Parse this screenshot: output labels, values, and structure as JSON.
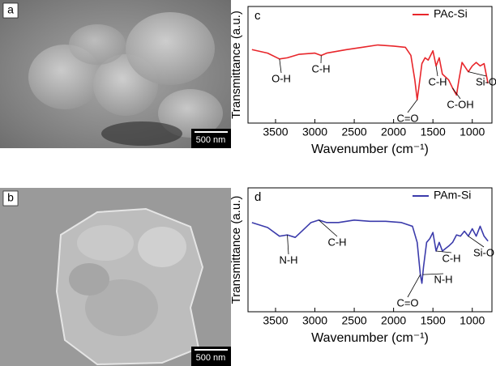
{
  "images": [
    {
      "label": "a",
      "scale_bar": "500 nm"
    },
    {
      "label": "b",
      "scale_bar": "500 nm"
    }
  ],
  "chart_data": [
    {
      "type": "line",
      "panel": "c",
      "xlabel": "Wavenumber (cm⁻¹)",
      "ylabel": "Transmittance (a.u.)",
      "xlim": [
        3850,
        750
      ],
      "ylim": [
        0,
        100
      ],
      "xticks": [
        3500,
        3000,
        2500,
        2000,
        1500,
        1000
      ],
      "legend": "upper right",
      "series": [
        {
          "name": "PAc-Si",
          "color": "#e8262b",
          "x": [
            3800,
            3600,
            3450,
            3350,
            3200,
            3000,
            2920,
            2850,
            2600,
            2400,
            2200,
            2000,
            1850,
            1780,
            1730,
            1700,
            1680,
            1640,
            1600,
            1560,
            1500,
            1460,
            1420,
            1380,
            1300,
            1250,
            1200,
            1170,
            1130,
            1100,
            1050,
            1000,
            950,
            900,
            850,
            800
          ],
          "values": [
            63,
            60,
            55,
            56,
            59,
            60,
            58,
            60,
            63,
            65,
            67,
            66,
            65,
            58,
            37,
            20,
            30,
            51,
            56,
            54,
            62,
            49,
            56,
            42,
            37,
            30,
            24,
            37,
            52,
            49,
            44,
            49,
            52,
            49,
            51,
            34
          ]
        }
      ],
      "annotations": [
        {
          "text": "O-H",
          "x": 3450,
          "y": 55
        },
        {
          "text": "C-H",
          "x": 2920,
          "y": 58
        },
        {
          "text": "C=O",
          "x": 1700,
          "y": 20
        },
        {
          "text": "C-H",
          "x": 1460,
          "y": 49
        },
        {
          "text": "C-OH",
          "x": 1250,
          "y": 30
        },
        {
          "text": "Si-O",
          "x": 1050,
          "y": 44
        }
      ]
    },
    {
      "type": "line",
      "panel": "d",
      "xlabel": "Wavenumber (cm⁻¹)",
      "ylabel": "Transmittance (a.u.)",
      "xlim": [
        3850,
        750
      ],
      "ylim": [
        0,
        100
      ],
      "xticks": [
        3500,
        3000,
        2500,
        2000,
        1500,
        1000
      ],
      "legend": "upper right",
      "series": [
        {
          "name": "PAm-Si",
          "color": "#3b3bab",
          "x": [
            3800,
            3600,
            3450,
            3350,
            3250,
            3150,
            3050,
            2950,
            2850,
            2700,
            2500,
            2300,
            2100,
            1900,
            1760,
            1700,
            1660,
            1640,
            1620,
            1580,
            1540,
            1500,
            1460,
            1420,
            1380,
            1300,
            1250,
            1200,
            1150,
            1100,
            1050,
            1000,
            950,
            900,
            850,
            800
          ],
          "values": [
            72,
            68,
            61,
            62,
            60,
            66,
            72,
            74,
            72,
            72,
            74,
            73,
            73,
            72,
            69,
            56,
            30,
            23,
            36,
            56,
            59,
            64,
            49,
            56,
            49,
            53,
            56,
            62,
            61,
            65,
            61,
            67,
            61,
            69,
            61,
            57
          ]
        }
      ],
      "annotations": [
        {
          "text": "N-H",
          "x": 3350,
          "y": 62
        },
        {
          "text": "C-H",
          "x": 2950,
          "y": 74
        },
        {
          "text": "C=O",
          "x": 1660,
          "y": 30
        },
        {
          "text": "N-H",
          "x": 1630,
          "y": 30
        },
        {
          "text": "C-H",
          "x": 1460,
          "y": 49
        },
        {
          "text": "Si-O",
          "x": 1050,
          "y": 61
        }
      ]
    }
  ]
}
